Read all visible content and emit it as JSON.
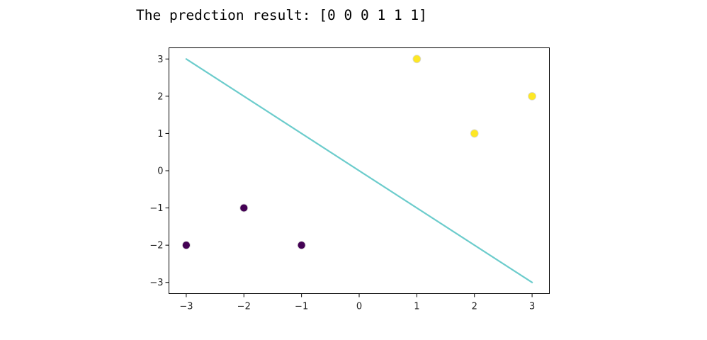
{
  "output": {
    "text": "The predction result: [0 0 0 1 1 1]"
  },
  "chart_data": {
    "type": "scatter",
    "title": "",
    "xlabel": "",
    "ylabel": "",
    "xlim": [
      -3.3,
      3.3
    ],
    "ylim": [
      -3.3,
      3.3
    ],
    "x_ticks": [
      "−3",
      "−2",
      "−1",
      "0",
      "1",
      "2",
      "3"
    ],
    "y_ticks": [
      "−3",
      "−2",
      "−1",
      "0",
      "1",
      "2",
      "3"
    ],
    "x_tick_values": [
      -3,
      -2,
      -1,
      0,
      1,
      2,
      3
    ],
    "y_tick_values": [
      -3,
      -2,
      -1,
      0,
      1,
      2,
      3
    ],
    "grid": false,
    "points": [
      {
        "x": -3,
        "y": -2,
        "label": 0
      },
      {
        "x": -2,
        "y": -1,
        "label": 0
      },
      {
        "x": -1,
        "y": -2,
        "label": 0
      },
      {
        "x": 1,
        "y": 3,
        "label": 1
      },
      {
        "x": 2,
        "y": 1,
        "label": 1
      },
      {
        "x": 3,
        "y": 2,
        "label": 1
      }
    ],
    "decision_line": {
      "x": [
        -3,
        3
      ],
      "y": [
        3,
        -3
      ],
      "color": "#6ccccc"
    },
    "class_colors": {
      "0": "#440154",
      "1": "#fde725"
    }
  }
}
